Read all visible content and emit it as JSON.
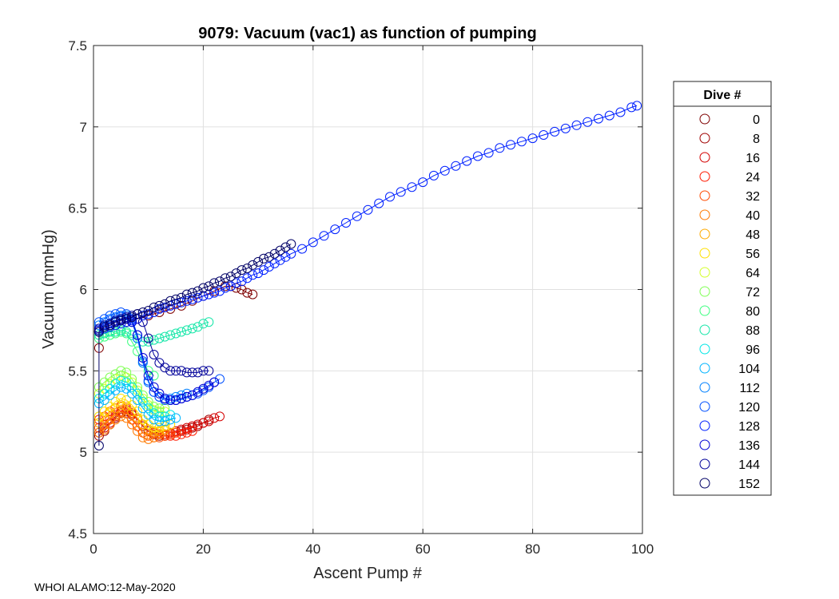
{
  "chart_data": {
    "type": "scatter",
    "title": "9079: Vacuum (vac1) as function of pumping",
    "xlabel": "Ascent Pump #",
    "ylabel": "Vacuum (mmHg)",
    "xlim": [
      0,
      100
    ],
    "ylim": [
      4.5,
      7.5
    ],
    "xticks": [
      0,
      20,
      40,
      60,
      80,
      100
    ],
    "yticks": [
      4.5,
      5,
      5.5,
      6,
      6.5,
      7,
      7.5
    ],
    "xtick_labels": [
      "0",
      "20",
      "40",
      "60",
      "80",
      "100"
    ],
    "ytick_labels": [
      "4.5",
      "5",
      "5.5",
      "6",
      "6.5",
      "7",
      "7.5"
    ],
    "grid": true,
    "marker": "open-circle",
    "legend": {
      "title": "Dive #",
      "placement": "outside-right",
      "entries": [
        {
          "label": "0",
          "color": "#7f0000"
        },
        {
          "label": "8",
          "color": "#a00000"
        },
        {
          "label": "16",
          "color": "#d40000"
        },
        {
          "label": "24",
          "color": "#ff1a00"
        },
        {
          "label": "32",
          "color": "#ff4a00"
        },
        {
          "label": "40",
          "color": "#ff7a00"
        },
        {
          "label": "48",
          "color": "#ffaa00"
        },
        {
          "label": "56",
          "color": "#ffe000"
        },
        {
          "label": "64",
          "color": "#d4ff2a"
        },
        {
          "label": "72",
          "color": "#80ff55"
        },
        {
          "label": "80",
          "color": "#3dff80"
        },
        {
          "label": "88",
          "color": "#15e6a8"
        },
        {
          "label": "96",
          "color": "#00e6e6"
        },
        {
          "label": "104",
          "color": "#00b4ff"
        },
        {
          "label": "112",
          "color": "#0080ff"
        },
        {
          "label": "120",
          "color": "#0050ff"
        },
        {
          "label": "128",
          "color": "#0020ff"
        },
        {
          "label": "136",
          "color": "#0000d4"
        },
        {
          "label": "144",
          "color": "#00009a"
        },
        {
          "label": "152",
          "color": "#000066"
        }
      ]
    },
    "series": [
      {
        "name": "0",
        "color": "#7f0000",
        "x": [
          1,
          1,
          2,
          4,
          6,
          8,
          10,
          12,
          14,
          16,
          18,
          20,
          22,
          24,
          25,
          26,
          27,
          28,
          29
        ],
        "y": [
          5.64,
          5.74,
          5.76,
          5.78,
          5.8,
          5.82,
          5.84,
          5.86,
          5.88,
          5.9,
          5.93,
          5.96,
          5.99,
          6.02,
          6.02,
          6.01,
          6.0,
          5.98,
          5.97
        ]
      },
      {
        "name": "8",
        "color": "#a00000",
        "x": [
          1,
          2,
          3,
          4,
          5,
          6,
          7,
          8,
          9,
          10,
          11,
          12,
          13,
          14,
          15,
          16,
          17,
          18,
          19,
          20,
          21
        ],
        "y": [
          5.1,
          5.13,
          5.17,
          5.21,
          5.24,
          5.25,
          5.23,
          5.2,
          5.16,
          5.13,
          5.11,
          5.1,
          5.1,
          5.11,
          5.12,
          5.13,
          5.14,
          5.15,
          5.16,
          5.18,
          5.2
        ]
      },
      {
        "name": "16",
        "color": "#d40000",
        "x": [
          1,
          2,
          3,
          4,
          5,
          6,
          7,
          8,
          9,
          10,
          11,
          12,
          13,
          14,
          15,
          16,
          17,
          18,
          19,
          20,
          21,
          22,
          23
        ],
        "y": [
          5.12,
          5.15,
          5.18,
          5.22,
          5.25,
          5.26,
          5.24,
          5.21,
          5.17,
          5.14,
          5.12,
          5.11,
          5.11,
          5.12,
          5.13,
          5.14,
          5.15,
          5.16,
          5.17,
          5.18,
          5.19,
          5.21,
          5.22
        ]
      },
      {
        "name": "24",
        "color": "#ff1a00",
        "x": [
          1,
          2,
          3,
          4,
          5,
          6,
          7,
          8,
          9,
          10,
          11,
          12,
          13,
          14,
          15,
          16,
          17,
          18
        ],
        "y": [
          5.2,
          5.22,
          5.25,
          5.27,
          5.28,
          5.27,
          5.24,
          5.2,
          5.17,
          5.14,
          5.12,
          5.11,
          5.1,
          5.1,
          5.1,
          5.11,
          5.12,
          5.13
        ]
      },
      {
        "name": "32",
        "color": "#ff4a00",
        "x": [
          1,
          2,
          3,
          4,
          5,
          6,
          7,
          8,
          9,
          10,
          11,
          12,
          13,
          14,
          15
        ],
        "y": [
          5.15,
          5.17,
          5.2,
          5.23,
          5.25,
          5.24,
          5.2,
          5.16,
          5.12,
          5.1,
          5.09,
          5.09,
          5.1,
          5.11,
          5.12
        ]
      },
      {
        "name": "40",
        "color": "#ff7a00",
        "x": [
          1,
          2,
          3,
          4,
          5,
          6,
          7,
          8,
          9,
          10,
          11,
          12
        ],
        "y": [
          5.12,
          5.14,
          5.17,
          5.2,
          5.22,
          5.21,
          5.17,
          5.13,
          5.09,
          5.08,
          5.09,
          5.11
        ]
      },
      {
        "name": "48",
        "color": "#ffaa00",
        "x": [
          1,
          2,
          3,
          4,
          5,
          6,
          7,
          8,
          9,
          10,
          11,
          12,
          13
        ],
        "y": [
          5.18,
          5.21,
          5.24,
          5.27,
          5.29,
          5.28,
          5.25,
          5.21,
          5.17,
          5.14,
          5.13,
          5.13,
          5.14
        ]
      },
      {
        "name": "56",
        "color": "#ffe000",
        "x": [
          1,
          2,
          3,
          4,
          5,
          6,
          7,
          8,
          9,
          10,
          11,
          12,
          13,
          14
        ],
        "y": [
          5.22,
          5.25,
          5.28,
          5.31,
          5.33,
          5.32,
          5.29,
          5.25,
          5.2,
          5.17,
          5.15,
          5.15,
          5.16,
          5.17
        ]
      },
      {
        "name": "64",
        "color": "#d4ff2a",
        "x": [
          1,
          2,
          3,
          4,
          5,
          6,
          7,
          8,
          9,
          10,
          11,
          12,
          13
        ],
        "y": [
          5.36,
          5.39,
          5.42,
          5.45,
          5.47,
          5.46,
          5.43,
          5.38,
          5.33,
          5.29,
          5.26,
          5.25,
          5.25
        ]
      },
      {
        "name": "72",
        "color": "#80ff55",
        "x": [
          1,
          2,
          3,
          4,
          5,
          6,
          7,
          8,
          9,
          10,
          11,
          12,
          13
        ],
        "y": [
          5.4,
          5.43,
          5.46,
          5.48,
          5.5,
          5.49,
          5.45,
          5.4,
          5.35,
          5.31,
          5.28,
          5.27,
          5.27
        ]
      },
      {
        "name": "80",
        "color": "#3dff80",
        "x": [
          1,
          2,
          3,
          4,
          5,
          6,
          7,
          8,
          9,
          10,
          11
        ],
        "y": [
          5.7,
          5.71,
          5.72,
          5.73,
          5.74,
          5.73,
          5.68,
          5.62,
          5.55,
          5.5,
          5.47
        ]
      },
      {
        "name": "88",
        "color": "#15e6a8",
        "x": [
          1,
          2,
          3,
          4,
          5,
          6,
          7,
          8,
          9,
          10,
          11,
          12,
          13,
          14,
          15,
          16,
          17,
          18,
          19,
          20,
          21
        ],
        "y": [
          5.72,
          5.73,
          5.74,
          5.74,
          5.75,
          5.74,
          5.72,
          5.7,
          5.68,
          5.68,
          5.69,
          5.7,
          5.71,
          5.72,
          5.73,
          5.74,
          5.75,
          5.76,
          5.77,
          5.79,
          5.8
        ]
      },
      {
        "name": "96",
        "color": "#00e6e6",
        "x": [
          1,
          2,
          3,
          4,
          5,
          6,
          7,
          8,
          9,
          10,
          11,
          12,
          13,
          14
        ],
        "y": [
          5.33,
          5.36,
          5.39,
          5.42,
          5.44,
          5.43,
          5.4,
          5.36,
          5.31,
          5.27,
          5.24,
          5.22,
          5.22,
          5.23
        ]
      },
      {
        "name": "104",
        "color": "#00b4ff",
        "x": [
          1,
          2,
          3,
          4,
          5,
          6,
          7,
          8,
          9,
          10,
          11,
          12,
          13,
          14,
          15
        ],
        "y": [
          5.3,
          5.32,
          5.35,
          5.38,
          5.4,
          5.39,
          5.36,
          5.32,
          5.27,
          5.23,
          5.2,
          5.19,
          5.19,
          5.2,
          5.21
        ]
      },
      {
        "name": "112",
        "color": "#0080ff",
        "x": [
          1,
          2,
          3,
          4,
          5,
          6,
          7,
          8,
          9,
          10,
          11,
          12,
          13,
          14,
          15,
          16,
          17
        ],
        "y": [
          5.78,
          5.8,
          5.82,
          5.83,
          5.84,
          5.84,
          5.8,
          5.7,
          5.55,
          5.43,
          5.37,
          5.34,
          5.33,
          5.33,
          5.34,
          5.35,
          5.36
        ]
      },
      {
        "name": "120",
        "color": "#0050ff",
        "x": [
          1,
          2,
          3,
          4,
          5,
          6,
          7,
          8,
          9,
          10,
          11,
          12,
          13,
          14,
          15,
          16,
          17,
          18,
          19,
          20,
          21,
          22,
          23
        ],
        "y": [
          5.8,
          5.82,
          5.84,
          5.85,
          5.86,
          5.85,
          5.82,
          5.72,
          5.56,
          5.44,
          5.37,
          5.34,
          5.32,
          5.32,
          5.32,
          5.33,
          5.34,
          5.35,
          5.36,
          5.38,
          5.4,
          5.43,
          5.45
        ]
      },
      {
        "name": "128",
        "color": "#0020ff",
        "x": [
          1,
          2,
          3,
          4,
          5,
          6,
          7,
          8,
          9,
          10,
          11,
          12,
          13,
          14,
          15,
          16,
          17,
          18,
          19,
          20,
          21,
          22,
          23,
          24,
          25,
          26,
          27,
          28,
          29,
          30,
          31,
          32,
          33,
          34,
          35,
          36,
          38,
          40,
          42,
          44,
          46,
          48,
          50,
          52,
          54,
          56,
          58,
          60,
          62,
          64,
          66,
          68,
          70,
          72,
          74,
          76,
          78,
          80,
          82,
          84,
          86,
          88,
          90,
          92,
          94,
          96,
          98,
          99
        ],
        "y": [
          5.74,
          5.76,
          5.77,
          5.78,
          5.79,
          5.8,
          5.81,
          5.82,
          5.84,
          5.85,
          5.86,
          5.88,
          5.89,
          5.9,
          5.91,
          5.92,
          5.93,
          5.94,
          5.95,
          5.96,
          5.97,
          5.98,
          5.99,
          6.01,
          6.02,
          6.04,
          6.05,
          6.07,
          6.09,
          6.1,
          6.12,
          6.14,
          6.16,
          6.18,
          6.2,
          6.22,
          6.25,
          6.29,
          6.33,
          6.37,
          6.41,
          6.45,
          6.49,
          6.53,
          6.57,
          6.6,
          6.63,
          6.66,
          6.7,
          6.73,
          6.76,
          6.79,
          6.82,
          6.84,
          6.87,
          6.89,
          6.91,
          6.93,
          6.95,
          6.97,
          6.99,
          7.01,
          7.03,
          7.05,
          7.07,
          7.09,
          7.12,
          7.13
        ]
      },
      {
        "name": "136",
        "color": "#0000d4",
        "x": [
          1,
          2,
          3,
          4,
          5,
          6,
          7,
          8,
          9,
          10,
          11,
          12,
          13,
          14,
          15,
          16,
          17,
          18,
          19,
          20,
          21,
          22
        ],
        "y": [
          5.75,
          5.77,
          5.78,
          5.8,
          5.81,
          5.82,
          5.8,
          5.72,
          5.58,
          5.47,
          5.4,
          5.36,
          5.33,
          5.32,
          5.32,
          5.33,
          5.34,
          5.35,
          5.37,
          5.39,
          5.41,
          5.43
        ]
      },
      {
        "name": "144",
        "color": "#00009a",
        "x": [
          1,
          2,
          3,
          4,
          5,
          6,
          7,
          8,
          9,
          10,
          11,
          12,
          13,
          14,
          15,
          16,
          17,
          18,
          19,
          20,
          21
        ],
        "y": [
          5.76,
          5.78,
          5.79,
          5.81,
          5.82,
          5.83,
          5.84,
          5.85,
          5.8,
          5.7,
          5.6,
          5.55,
          5.52,
          5.5,
          5.5,
          5.5,
          5.49,
          5.49,
          5.49,
          5.5,
          5.5
        ]
      },
      {
        "name": "152",
        "color": "#000066",
        "x": [
          1,
          1,
          2,
          3,
          4,
          5,
          6,
          7,
          8,
          9,
          10,
          11,
          12,
          13,
          14,
          15,
          16,
          17,
          18,
          19,
          20,
          21,
          22,
          23,
          24,
          25,
          26,
          27,
          28,
          29,
          30,
          31,
          32,
          33,
          34,
          35,
          36
        ],
        "y": [
          5.04,
          5.74,
          5.77,
          5.78,
          5.8,
          5.81,
          5.82,
          5.83,
          5.85,
          5.86,
          5.87,
          5.89,
          5.9,
          5.91,
          5.93,
          5.94,
          5.95,
          5.97,
          5.98,
          5.99,
          6.01,
          6.02,
          6.04,
          6.05,
          6.07,
          6.08,
          6.1,
          6.12,
          6.13,
          6.15,
          6.17,
          6.19,
          6.2,
          6.22,
          6.24,
          6.26,
          6.28
        ]
      }
    ]
  },
  "footer": "WHOI ALAMO:12-May-2020"
}
